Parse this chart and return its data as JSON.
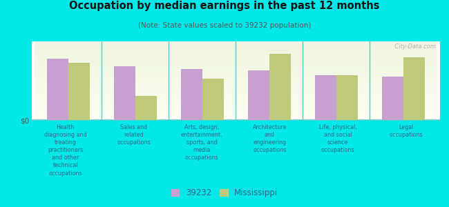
{
  "title": "Occupation by median earnings in the past 12 months",
  "subtitle": "(Note: State values scaled to 39232 population)",
  "bg_outer": "#00e8e8",
  "bg_plot_top": "#f0f5e0",
  "bg_plot_bottom": "#ffffff",
  "categories": [
    "Health\ndiagnosing and\ntreating\npractitioners\nand other\ntechnical\noccupations",
    "Sales and\nrelated\noccupations",
    "Arts, design,\nentertainment,\nsports, and\nmedia\noccupations",
    "Architecture\nand\nengineering\noccupations",
    "Life, physical,\nand social\nscience\noccupations",
    "Legal\noccupations"
  ],
  "values_39232": [
    0.82,
    0.72,
    0.68,
    0.66,
    0.6,
    0.58
  ],
  "values_mississippi": [
    0.76,
    0.32,
    0.55,
    0.88,
    0.6,
    0.84
  ],
  "color_39232": "#c8a0d0",
  "color_mississippi": "#c0c87a",
  "bar_width": 0.32,
  "ylabel": "$0",
  "legend_label_39232": "39232",
  "legend_label_ms": "Mississippi",
  "watermark": "  City-Data.com",
  "title_color": "#111111",
  "subtitle_color": "#555555",
  "label_color": "#336688",
  "sep_color": "#55cccc",
  "axis_color": "#aaaaaa"
}
